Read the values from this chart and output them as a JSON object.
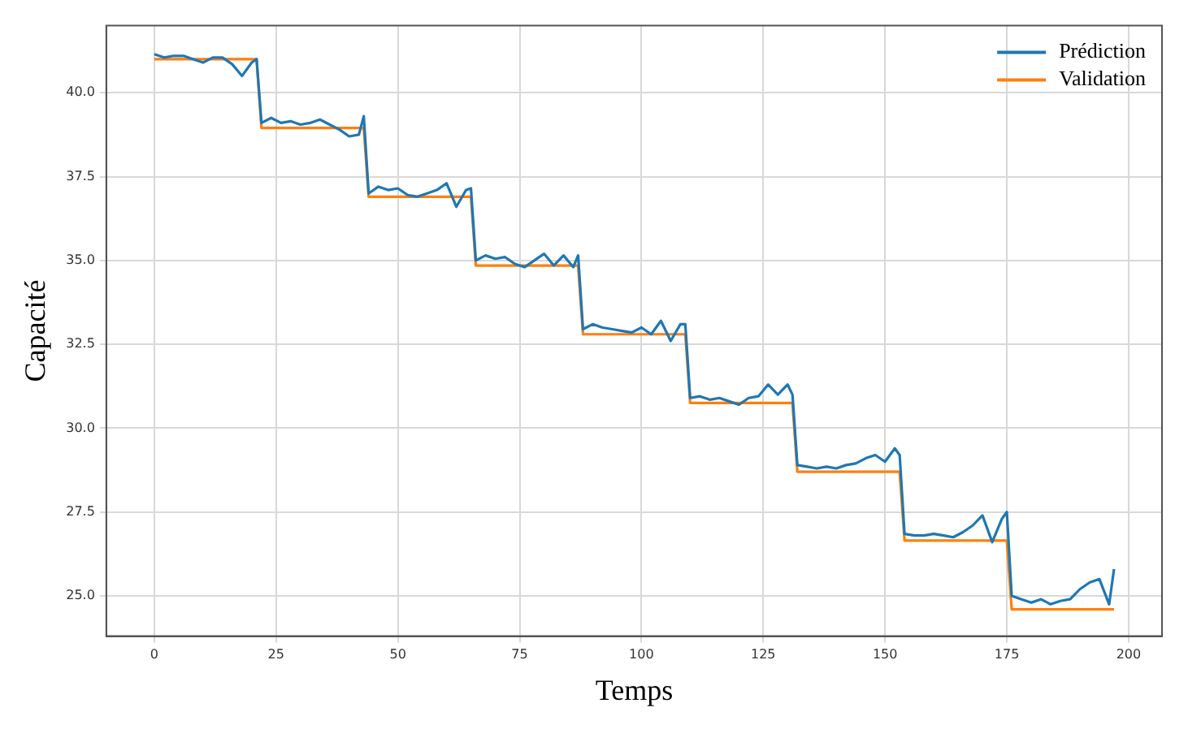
{
  "chart_data": {
    "type": "line",
    "xlabel": "Temps",
    "ylabel": "Capacité",
    "xlim": [
      -9.85,
      206.85
    ],
    "xticks": [
      0,
      25,
      50,
      75,
      100,
      125,
      150,
      175,
      200
    ],
    "ylim": [
      23.8,
      42.0
    ],
    "yticks": [
      {
        "value": 25,
        "label": "25.0"
      },
      {
        "value": 27.5,
        "label": "27.5"
      },
      {
        "value": 30,
        "label": "30.0"
      },
      {
        "value": 32.5,
        "label": "32.5"
      },
      {
        "value": 35,
        "label": "35.0"
      },
      {
        "value": 37.5,
        "label": "37.5"
      },
      {
        "value": 40,
        "label": "40.0"
      }
    ],
    "grid": true,
    "legend": "top right",
    "marker": "none",
    "line_style": "solid",
    "series": [
      {
        "name": "Prédiction",
        "color": "#1f77b4",
        "x": [
          0,
          2,
          4,
          6,
          8,
          10,
          12,
          14,
          16,
          18,
          20,
          21,
          22,
          24,
          26,
          28,
          30,
          32,
          34,
          36,
          38,
          40,
          42,
          43,
          44,
          46,
          48,
          50,
          52,
          54,
          56,
          58,
          60,
          62,
          64,
          65,
          66,
          68,
          70,
          72,
          74,
          76,
          78,
          80,
          82,
          84,
          86,
          87,
          88,
          90,
          92,
          94,
          96,
          98,
          100,
          102,
          104,
          106,
          108,
          109,
          110,
          112,
          114,
          116,
          118,
          120,
          122,
          124,
          126,
          128,
          130,
          131,
          132,
          134,
          136,
          138,
          140,
          142,
          144,
          146,
          148,
          150,
          152,
          153,
          154,
          156,
          158,
          160,
          162,
          164,
          166,
          168,
          170,
          172,
          174,
          175,
          176,
          178,
          180,
          182,
          184,
          186,
          188,
          190,
          192,
          194,
          196,
          197
        ],
        "values": [
          41.15,
          41.05,
          41.1,
          41.1,
          41.0,
          40.9,
          41.05,
          41.05,
          40.85,
          40.5,
          40.9,
          41.0,
          39.1,
          39.25,
          39.1,
          39.15,
          39.05,
          39.1,
          39.2,
          39.05,
          38.9,
          38.7,
          38.75,
          39.3,
          37.0,
          37.2,
          37.1,
          37.15,
          36.95,
          36.9,
          37.0,
          37.1,
          37.3,
          36.6,
          37.1,
          37.15,
          35.0,
          35.15,
          35.05,
          35.1,
          34.9,
          34.8,
          35.0,
          35.2,
          34.85,
          35.15,
          34.8,
          35.15,
          32.95,
          33.1,
          33.0,
          32.95,
          32.9,
          32.85,
          33.0,
          32.8,
          33.2,
          32.6,
          33.1,
          33.1,
          30.9,
          30.95,
          30.85,
          30.9,
          30.8,
          30.7,
          30.9,
          30.95,
          31.3,
          31.0,
          31.3,
          31.0,
          28.9,
          28.85,
          28.8,
          28.85,
          28.8,
          28.9,
          28.95,
          29.1,
          29.2,
          29.0,
          29.4,
          29.2,
          26.85,
          26.8,
          26.8,
          26.85,
          26.8,
          26.75,
          26.9,
          27.1,
          27.4,
          26.6,
          27.3,
          27.5,
          25.0,
          24.9,
          24.8,
          24.9,
          24.75,
          24.85,
          24.9,
          25.2,
          25.4,
          25.5,
          24.75,
          25.8
        ]
      },
      {
        "name": "Validation",
        "color": "#ff7f0e",
        "x": [
          0,
          21,
          22,
          43,
          44,
          65,
          66,
          87,
          88,
          109,
          110,
          131,
          132,
          153,
          154,
          175,
          176,
          197
        ],
        "values": [
          41.0,
          41.0,
          38.95,
          38.95,
          36.9,
          36.9,
          34.85,
          34.85,
          32.8,
          32.8,
          30.75,
          30.75,
          28.7,
          28.7,
          26.65,
          26.65,
          24.6,
          24.6
        ]
      }
    ]
  }
}
